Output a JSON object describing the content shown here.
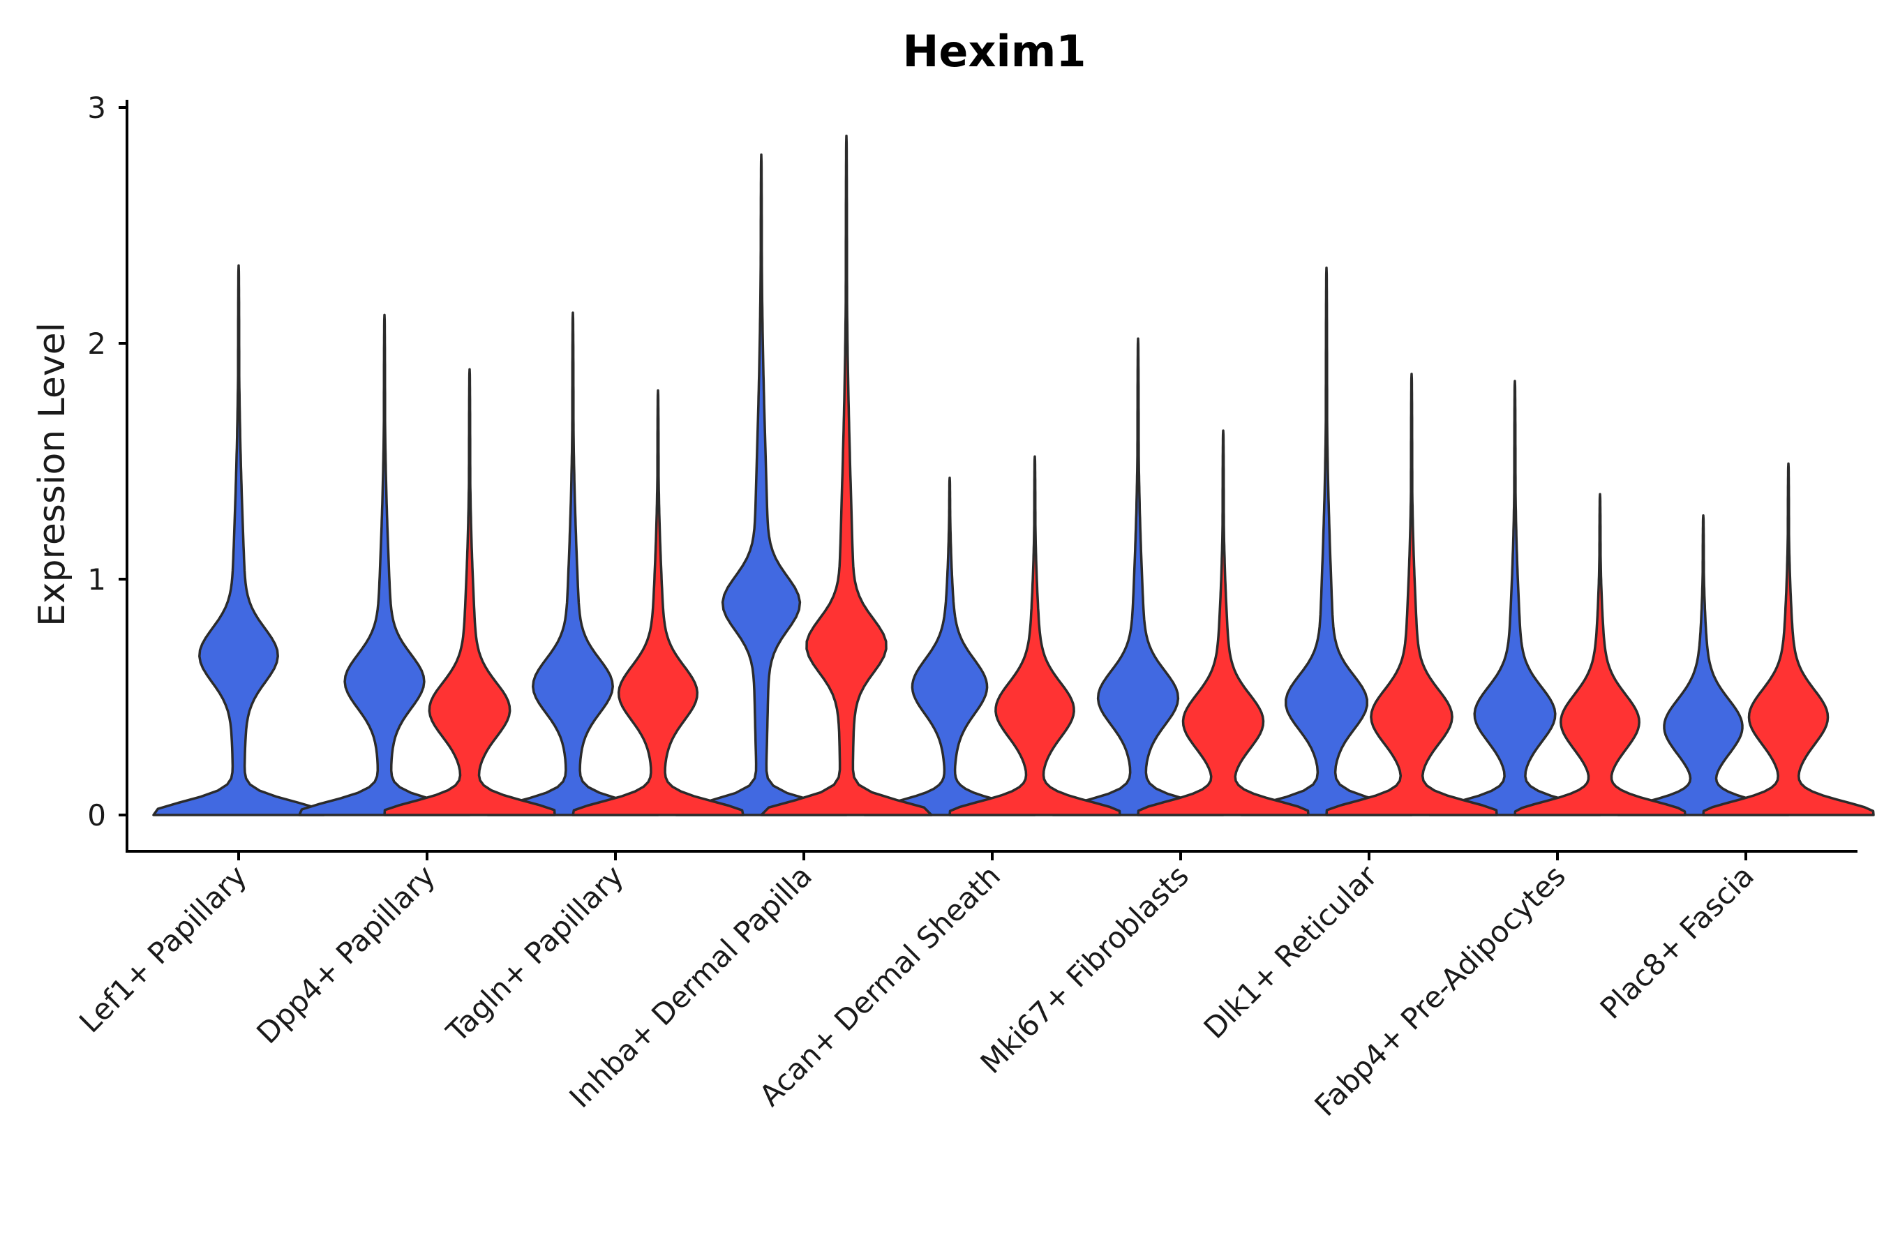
{
  "chart_data": {
    "type": "violin",
    "title": "Hexim1",
    "xlabel": "",
    "ylabel": "Expression Level",
    "ylim": [
      -0.15,
      3.05
    ],
    "yticks": [
      0,
      1,
      2,
      3
    ],
    "categories": [
      "Lef1+ Papillary",
      "Dpp4+ Papillary",
      "Tagln+ Papillary",
      "Inhba+ Dermal Papilla",
      "Acan+ Dermal Sheath",
      "Mki67+ Fibroblasts",
      "Dlk1+ Reticular",
      "Fabp4+ Pre-Adipocytes",
      "Plac8+ Fascia"
    ],
    "series": [
      {
        "name": "blue",
        "color": "#4169E1",
        "max": [
          2.33,
          2.12,
          2.13,
          2.8,
          1.43,
          2.02,
          2.32,
          1.84,
          1.27
        ],
        "modes": [
          0.68,
          0.57,
          0.55,
          0.9,
          0.55,
          0.5,
          0.48,
          0.43,
          0.38
        ]
      },
      {
        "name": "red",
        "color": "#FF3333",
        "max": [
          null,
          1.89,
          1.8,
          2.88,
          1.52,
          1.63,
          1.87,
          1.36,
          1.49
        ],
        "modes": [
          null,
          0.45,
          0.52,
          0.72,
          0.45,
          0.4,
          0.42,
          0.4,
          0.42
        ]
      }
    ],
    "grid": false,
    "legend": "none"
  }
}
